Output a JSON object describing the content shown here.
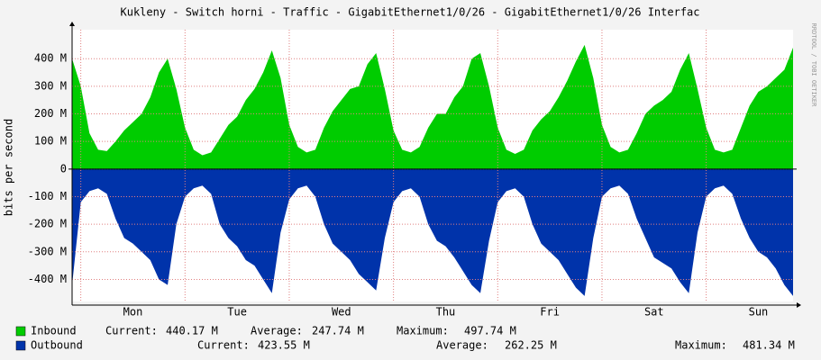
{
  "chart_data": {
    "type": "area",
    "title": "Kukleny - Switch horni - Traffic - GigabitEthernet1/0/26 - GigabitEthernet1/0/26 Interfac",
    "y_label": "bits per second",
    "watermark": "RRDTOOL / TOBI OETIKER",
    "x_labels": [
      "Mon",
      "Tue",
      "Wed",
      "Thu",
      "Fri",
      "Sat",
      "Sun"
    ],
    "ylim": [
      -480,
      505
    ],
    "yticks": [
      {
        "value": 400,
        "label": "400 M"
      },
      {
        "value": 300,
        "label": "300 M"
      },
      {
        "value": 200,
        "label": "200 M"
      },
      {
        "value": 100,
        "label": "100 M"
      },
      0,
      {
        "value": -100,
        "label": "-100 M"
      },
      {
        "value": -200,
        "label": "-200 M"
      },
      {
        "value": -300,
        "label": "-300 M"
      },
      {
        "value": -400,
        "label": "-400 M"
      }
    ],
    "grid": true,
    "series": [
      {
        "name": "Inbound",
        "color": "#00cc00",
        "values": [
          400,
          300,
          130,
          70,
          65,
          100,
          140,
          170,
          200,
          260,
          350,
          400,
          290,
          150,
          70,
          50,
          60,
          110,
          160,
          190,
          250,
          290,
          350,
          430,
          330,
          160,
          80,
          60,
          70,
          150,
          210,
          250,
          290,
          300,
          380,
          420,
          290,
          140,
          70,
          60,
          80,
          150,
          200,
          200,
          260,
          300,
          400,
          420,
          300,
          150,
          70,
          55,
          70,
          140,
          180,
          210,
          260,
          320,
          390,
          450,
          330,
          160,
          80,
          60,
          70,
          130,
          200,
          230,
          250,
          280,
          360,
          420,
          290,
          150,
          70,
          60,
          70,
          150,
          230,
          280,
          300,
          330,
          360,
          440
        ],
        "stats": {
          "labels": [
            "Current:",
            "Average:",
            "Maximum:"
          ],
          "values": [
            440.17,
            247.74,
            497.74
          ],
          "value_labels": [
            "440.17 M",
            "247.74 M",
            "497.74 M"
          ]
        }
      },
      {
        "name": "Outbound",
        "color": "#0033aa",
        "values": [
          -420,
          -120,
          -80,
          -70,
          -90,
          -180,
          -250,
          -270,
          -300,
          -330,
          -400,
          -420,
          -200,
          -100,
          -70,
          -60,
          -90,
          -200,
          -250,
          -280,
          -330,
          -350,
          -400,
          -450,
          -230,
          -110,
          -70,
          -60,
          -100,
          -200,
          -270,
          -300,
          -330,
          -380,
          -410,
          -440,
          -250,
          -120,
          -80,
          -70,
          -100,
          -200,
          -260,
          -280,
          -320,
          -370,
          -420,
          -450,
          -260,
          -120,
          -80,
          -70,
          -100,
          -200,
          -270,
          -300,
          -330,
          -380,
          -430,
          -460,
          -250,
          -100,
          -70,
          -60,
          -90,
          -180,
          -250,
          -320,
          -340,
          -360,
          -410,
          -450,
          -230,
          -100,
          -70,
          -60,
          -90,
          -180,
          -250,
          -300,
          -320,
          -360,
          -420,
          -460
        ],
        "stats": {
          "labels": [
            "Current:",
            "Average:",
            "Maximum:"
          ],
          "values": [
            423.55,
            262.25,
            481.34
          ],
          "value_labels": [
            "423.55 M",
            "262.25 M",
            "481.34 M"
          ]
        }
      }
    ]
  }
}
